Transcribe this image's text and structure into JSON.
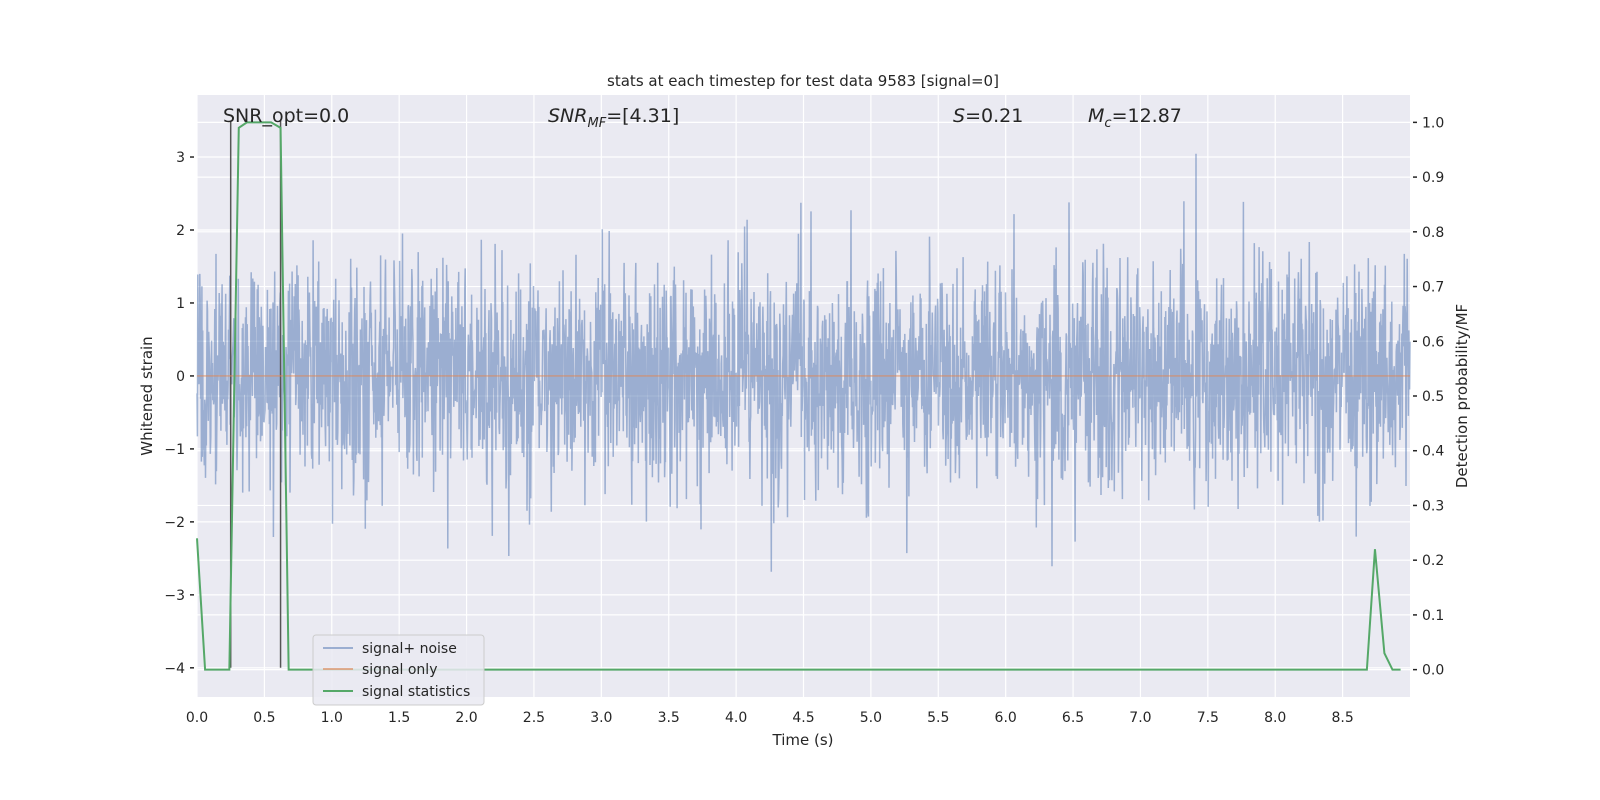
{
  "chart_data": {
    "type": "line",
    "title": "stats at each timestep for test data 9583 [signal=0]",
    "xlabel": "Time (s)",
    "ylabel": "Whitened strain",
    "ylabel_right": "Detection probability/MF",
    "xlim": [
      0,
      9.0
    ],
    "ylim": [
      -4.4,
      3.85
    ],
    "ylim_right": [
      -0.05,
      1.05
    ],
    "x_ticks": [
      "0.0",
      "0.5",
      "1.0",
      "1.5",
      "2.0",
      "2.5",
      "3.0",
      "3.5",
      "4.0",
      "4.5",
      "5.0",
      "5.5",
      "6.0",
      "6.5",
      "7.0",
      "7.5",
      "8.0",
      "8.5"
    ],
    "y_ticks": [
      "−4",
      "−3",
      "−2",
      "−1",
      "0",
      "1",
      "2",
      "3"
    ],
    "y_ticks_right": [
      "0.0",
      "0.1",
      "0.2",
      "0.3",
      "0.4",
      "0.5",
      "0.6",
      "0.7",
      "0.8",
      "0.9",
      "1.0"
    ],
    "grid": true,
    "legend_position": "lower-left",
    "annotations": {
      "snr_opt": "SNR_opt=0.0",
      "snr_mf_base": "SNR",
      "snr_mf_sub": "MF",
      "snr_mf_rest": "=[4.31]",
      "s_base": "S",
      "s_rest": "=0.21",
      "mc_base": "M",
      "mc_sub": "c",
      "mc_rest": "=12.87"
    },
    "vertical_markers_s": [
      0.25,
      0.62
    ],
    "series": [
      {
        "name": "signal+ noise",
        "color": "#4c72b0",
        "note_values": "whitened noise, roughly ±1.5 with spikes to about 3.5 and −4"
      },
      {
        "name": "signal only",
        "color": "#dd8452",
        "x": [
          0,
          9.0
        ],
        "y": [
          0,
          0
        ]
      },
      {
        "name": "signal statistics",
        "color": "#55a868",
        "axis": "right",
        "x": [
          0.0,
          0.06,
          0.12,
          0.18,
          0.24,
          0.31,
          0.37,
          0.43,
          0.49,
          0.55,
          0.62,
          0.68,
          0.74,
          8.68,
          8.74,
          8.81,
          8.87,
          8.93
        ],
        "y": [
          0.24,
          0.0,
          0.0,
          0.0,
          0.0,
          0.99,
          1.0,
          1.0,
          1.0,
          1.0,
          0.99,
          0.0,
          0.0,
          0.0,
          0.22,
          0.03,
          0.0,
          0.0
        ]
      }
    ],
    "colors": {
      "background": "#eaeaf2",
      "grid": "#ffffff",
      "marker": "#555555"
    }
  }
}
